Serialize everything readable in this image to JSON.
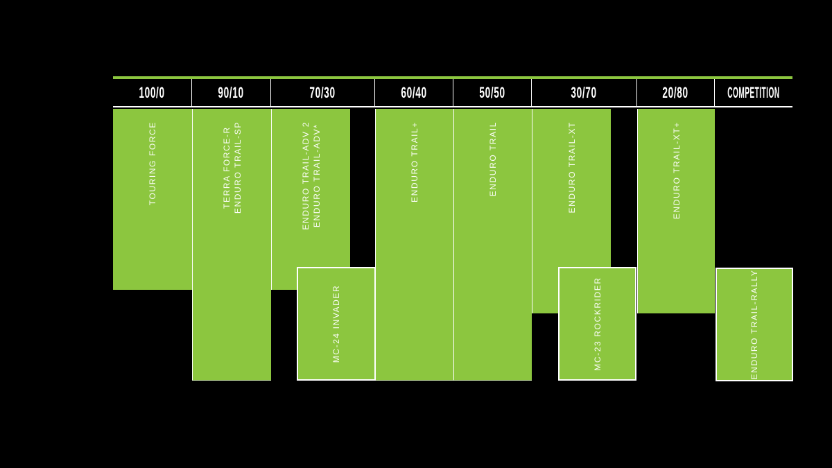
{
  "chart": {
    "colors": {
      "green": "#8CC63F",
      "background": "#000000",
      "lines": "#FFFFFF",
      "label_text": "#FFFFFF"
    },
    "columns": [
      "100/0",
      "90/10",
      "70/30",
      "60/40",
      "50/50",
      "30/70",
      "20/80",
      "COMPETITION"
    ],
    "bars": [
      {
        "lines": [
          "TOURING FORCE"
        ]
      },
      {
        "lines": [
          "TERRA FORCE-R",
          "ENDURO TRAIL-SP"
        ]
      },
      {
        "lines": [
          "ENDURO TRAIL-ADV 2",
          "ENDURO TRAIL-ADV*"
        ]
      },
      {
        "lines": [
          "MC-24 INVADER"
        ]
      },
      {
        "lines": [
          "ENDURO TRAIL+"
        ]
      },
      {
        "lines": [
          "ENDURO TRAIL"
        ]
      },
      {
        "lines": [
          "ENDURO TRAIL-XT"
        ]
      },
      {
        "lines": [
          "MC-23 ROCKRIDER"
        ]
      },
      {
        "lines": [
          "ENDURO TRAIL-XT+"
        ]
      },
      {
        "lines": [
          "ENDURO TRAIL-RALLY"
        ]
      }
    ]
  },
  "chart_data": {
    "type": "table",
    "title": "",
    "categories": [
      "100/0",
      "90/10",
      "70/30",
      "60/40",
      "50/50",
      "30/70",
      "20/80",
      "COMPETITION"
    ],
    "grid": false,
    "legend_position": "none",
    "rows": [
      {
        "model": "TOURING FORCE",
        "category_start": "100/0",
        "category_end": "100/0",
        "band": "upper",
        "outlined": false
      },
      {
        "model": "TERRA FORCE-R / ENDURO TRAIL-SP",
        "category_start": "90/10",
        "category_end": "90/10",
        "band": "full",
        "outlined": false
      },
      {
        "model": "ENDURO TRAIL-ADV 2 / ENDURO TRAIL-ADV*",
        "category_start": "70/30",
        "category_end": "70/30",
        "band": "upper",
        "outlined": false
      },
      {
        "model": "MC-24 INVADER",
        "category_start": "70/30",
        "category_end": "60/40",
        "band": "lower",
        "outlined": true
      },
      {
        "model": "ENDURO TRAIL+",
        "category_start": "60/40",
        "category_end": "60/40",
        "band": "full",
        "outlined": false
      },
      {
        "model": "ENDURO TRAIL",
        "category_start": "50/50",
        "category_end": "50/50",
        "band": "full",
        "outlined": false
      },
      {
        "model": "ENDURO TRAIL-XT",
        "category_start": "30/70",
        "category_end": "30/70",
        "band": "upper",
        "outlined": false
      },
      {
        "model": "MC-23 ROCKRIDER",
        "category_start": "30/70",
        "category_end": "30/70",
        "band": "lower",
        "outlined": true
      },
      {
        "model": "ENDURO TRAIL-XT+",
        "category_start": "20/80",
        "category_end": "20/80",
        "band": "upper",
        "outlined": false
      },
      {
        "model": "ENDURO TRAIL-RALLY",
        "category_start": "COMPETITION",
        "category_end": "COMPETITION",
        "band": "lower",
        "outlined": true
      }
    ]
  }
}
